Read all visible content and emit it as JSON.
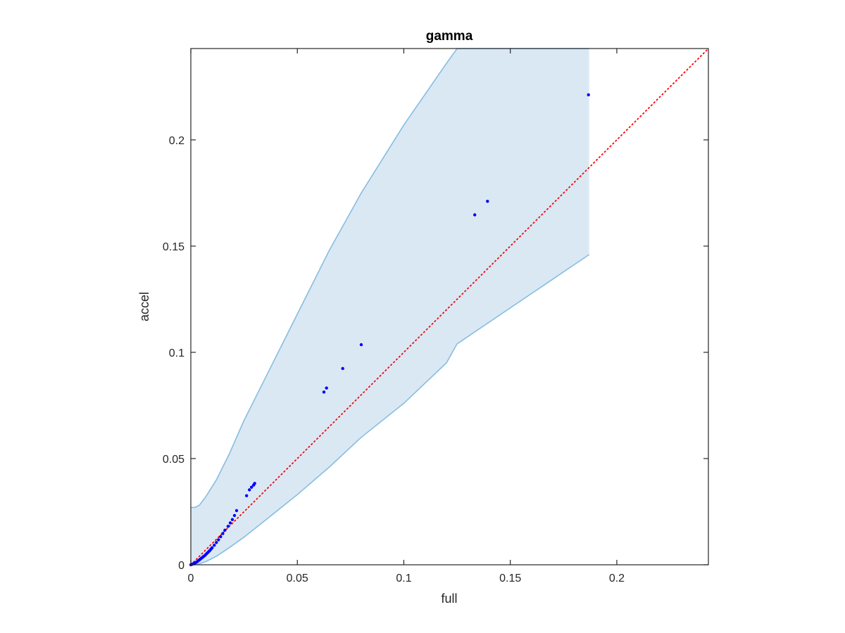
{
  "chart_data": {
    "type": "scatter",
    "title": "gamma",
    "xlabel": "full",
    "ylabel": "accel",
    "xlim": [
      0,
      0.243
    ],
    "ylim": [
      0,
      0.243
    ],
    "xticks": [
      0,
      0.05,
      0.1,
      0.15,
      0.2
    ],
    "xtick_labels": [
      "0",
      "0.05",
      "0.1",
      "0.15",
      "0.2"
    ],
    "yticks": [
      0,
      0.05,
      0.1,
      0.15,
      0.2
    ],
    "ytick_labels": [
      "0",
      "0.05",
      "0.1",
      "0.15",
      "0.2"
    ],
    "grid": false,
    "colors": {
      "points": "#0000ff",
      "reference_line": "#ff0000",
      "band_fill": "#dae8f4",
      "band_edge": "#86bde0",
      "axes": "#262626"
    },
    "reference_line": {
      "style": "dotted",
      "x": [
        0,
        0.243
      ],
      "y": [
        0,
        0.243
      ]
    },
    "band": {
      "x": [
        0,
        0.002,
        0.004,
        0.007,
        0.012,
        0.018,
        0.025,
        0.035,
        0.05,
        0.065,
        0.08,
        0.1,
        0.12,
        0.125,
        0.187
      ],
      "upper": [
        0.027,
        0.027,
        0.028,
        0.032,
        0.04,
        0.052,
        0.068,
        0.088,
        0.118,
        0.148,
        0.175,
        0.207,
        0.236,
        0.243,
        0.243
      ],
      "lower": [
        0,
        0,
        0.0005,
        0.0015,
        0.004,
        0.008,
        0.013,
        0.021,
        0.033,
        0.046,
        0.06,
        0.076,
        0.095,
        0.104,
        0.146
      ]
    },
    "points": {
      "x": [
        0,
        0.0005,
        0.001,
        0.0015,
        0.002,
        0.0025,
        0.003,
        0.0035,
        0.004,
        0.0045,
        0.005,
        0.0055,
        0.006,
        0.0065,
        0.007,
        0.0075,
        0.008,
        0.0085,
        0.009,
        0.0095,
        0.01,
        0.011,
        0.012,
        0.013,
        0.014,
        0.015,
        0.016,
        0.0175,
        0.0185,
        0.0195,
        0.0205,
        0.0215,
        0.0262,
        0.0275,
        0.0285,
        0.0295,
        0.03,
        0.0625,
        0.0637,
        0.0713,
        0.08,
        0.1333,
        0.1393,
        0.1867
      ],
      "y": [
        0,
        0.0002,
        0.0004,
        0.0006,
        0.0009,
        0.0012,
        0.0015,
        0.0019,
        0.0023,
        0.0027,
        0.0031,
        0.0035,
        0.0039,
        0.0043,
        0.0048,
        0.0053,
        0.0058,
        0.0063,
        0.0068,
        0.0074,
        0.008,
        0.0092,
        0.0105,
        0.0118,
        0.0132,
        0.0147,
        0.0163,
        0.0181,
        0.0197,
        0.0213,
        0.0232,
        0.0255,
        0.0325,
        0.0353,
        0.0365,
        0.0375,
        0.0383,
        0.0813,
        0.0832,
        0.0924,
        0.1036,
        0.1647,
        0.1711,
        0.2212
      ]
    }
  }
}
